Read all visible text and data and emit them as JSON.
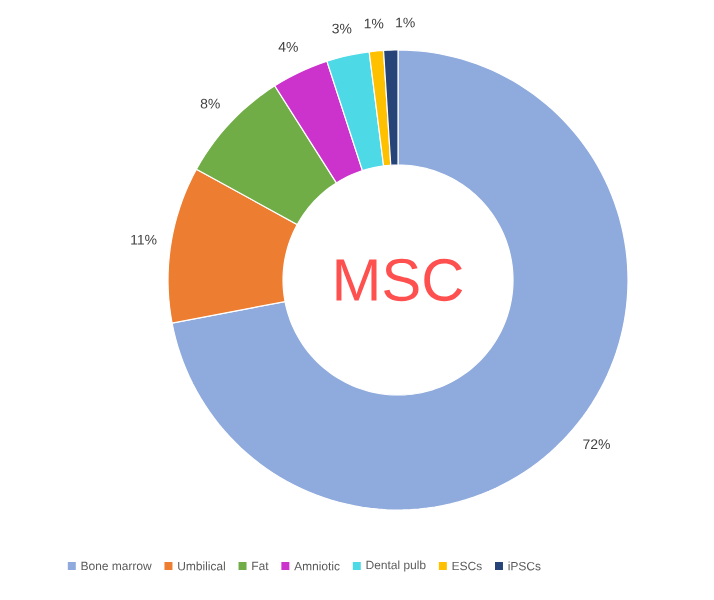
{
  "chart_data": {
    "type": "donut",
    "title": "MSC",
    "categories": [
      "Bone marrow",
      "Umbilical",
      "Fat",
      "Amniotic",
      "Dental pulb",
      "ESCs",
      "iPSCs"
    ],
    "values": [
      72,
      11,
      8,
      4,
      3,
      1,
      1
    ],
    "value_labels": [
      "72%",
      "11%",
      "8%",
      "4%",
      "3%",
      "1%",
      "1%"
    ],
    "colors": [
      "#8faadc",
      "#ed7d31",
      "#70ad47",
      "#cc33cc",
      "#4dd9e6",
      "#ffc000",
      "#264478"
    ],
    "legend": "bottom"
  }
}
